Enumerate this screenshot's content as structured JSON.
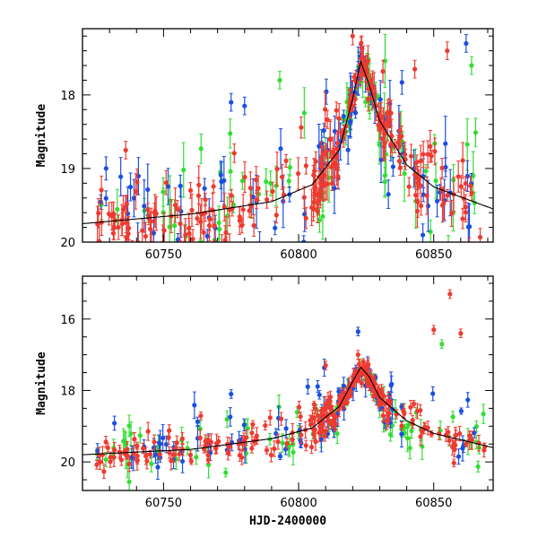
{
  "chart_data": [
    {
      "type": "scatter",
      "panel": "top",
      "title": "",
      "xlabel": "",
      "ylabel": "Magnitude",
      "xlim": [
        60720,
        60872
      ],
      "ylim": [
        20.0,
        17.1
      ],
      "y_inverted": true,
      "xticks": [
        60750,
        60800,
        60850
      ],
      "yticks": [
        18,
        19,
        20
      ],
      "series_colors": {
        "red": "#ee3a30",
        "blue": "#1a4fe0",
        "green": "#33dd33",
        "model": "#000000"
      },
      "model_curve": {
        "x": [
          60720,
          60760,
          60790,
          60805,
          60815,
          60820,
          60823,
          60826,
          60830,
          60840,
          60850,
          60872
        ],
        "y": [
          19.75,
          19.62,
          19.45,
          19.22,
          18.75,
          18.05,
          17.55,
          17.85,
          18.35,
          18.95,
          19.25,
          19.55
        ]
      },
      "highlight_points": [
        {
          "series": "red",
          "x": 60820,
          "y": 17.2
        },
        {
          "series": "red",
          "x": 60843,
          "y": 17.65
        },
        {
          "series": "red",
          "x": 60855,
          "y": 17.4
        },
        {
          "series": "blue",
          "x": 60862,
          "y": 17.3
        },
        {
          "series": "green",
          "x": 60864,
          "y": 17.6
        },
        {
          "series": "green",
          "x": 60793,
          "y": 17.8
        },
        {
          "series": "blue",
          "x": 60775,
          "y": 18.1
        },
        {
          "series": "blue",
          "x": 60780,
          "y": 18.15
        },
        {
          "series": "red",
          "x": 60736,
          "y": 18.75
        }
      ]
    },
    {
      "type": "scatter",
      "panel": "bottom",
      "title": "",
      "xlabel": "HJD-2400000",
      "ylabel": "Magnitude",
      "xlim": [
        60720,
        60872
      ],
      "ylim": [
        20.8,
        14.8
      ],
      "y_inverted": true,
      "xticks": [
        60750,
        60800,
        60850
      ],
      "yticks": [
        16,
        18,
        20
      ],
      "series_colors": {
        "red": "#ee3a30",
        "blue": "#1a4fe0",
        "green": "#33dd33",
        "model": "#000000"
      },
      "model_curve": {
        "x": [
          60720,
          60760,
          60790,
          60805,
          60815,
          60820,
          60823,
          60826,
          60830,
          60840,
          60850,
          60872
        ],
        "y": [
          19.8,
          19.65,
          19.35,
          19.05,
          18.45,
          17.75,
          17.35,
          17.6,
          18.2,
          18.85,
          19.2,
          19.6
        ]
      },
      "highlight_points": [
        {
          "series": "red",
          "x": 60856,
          "y": 15.3
        },
        {
          "series": "red",
          "x": 60850,
          "y": 16.3
        },
        {
          "series": "blue",
          "x": 60822,
          "y": 16.35
        },
        {
          "series": "red",
          "x": 60860,
          "y": 16.4
        },
        {
          "series": "green",
          "x": 60853,
          "y": 16.7
        },
        {
          "series": "red",
          "x": 60822,
          "y": 17.0
        },
        {
          "series": "red",
          "x": 60810,
          "y": 17.3
        },
        {
          "series": "blue",
          "x": 60775,
          "y": 18.1
        },
        {
          "series": "green",
          "x": 60773,
          "y": 20.3
        }
      ]
    }
  ]
}
